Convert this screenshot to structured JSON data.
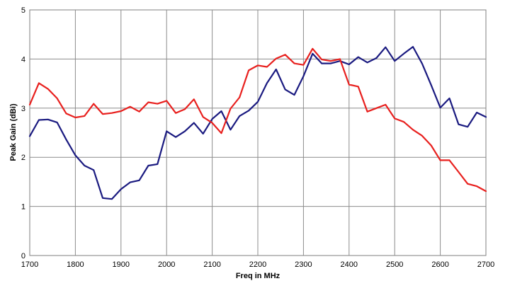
{
  "chart_data": {
    "type": "line",
    "title": "",
    "xlabel": "Freq in MHz",
    "ylabel": "Peak Gain (dBi)",
    "xlim": [
      1700,
      2700
    ],
    "ylim": [
      0,
      5
    ],
    "x_ticks": [
      "1700",
      "1800",
      "1900",
      "2000",
      "2100",
      "2200",
      "2300",
      "2400",
      "2500",
      "2600",
      "2700"
    ],
    "y_ticks": [
      "0",
      "1",
      "2",
      "3",
      "4",
      "5"
    ],
    "grid": true,
    "legend": "none",
    "x": [
      1700,
      1720,
      1740,
      1760,
      1780,
      1800,
      1820,
      1840,
      1860,
      1880,
      1900,
      1920,
      1940,
      1960,
      1980,
      2000,
      2020,
      2040,
      2060,
      2080,
      2100,
      2120,
      2140,
      2160,
      2180,
      2200,
      2220,
      2240,
      2260,
      2280,
      2300,
      2320,
      2340,
      2360,
      2380,
      2400,
      2420,
      2440,
      2460,
      2480,
      2500,
      2520,
      2540,
      2560,
      2580,
      2600,
      2620,
      2640,
      2660,
      2680,
      2700
    ],
    "series": [
      {
        "color": "#1a1a80",
        "values": [
          2.43,
          2.76,
          2.77,
          2.71,
          2.36,
          2.04,
          1.83,
          1.74,
          1.17,
          1.15,
          1.35,
          1.49,
          1.53,
          1.83,
          1.86,
          2.53,
          2.41,
          2.53,
          2.7,
          2.48,
          2.78,
          2.94,
          2.56,
          2.84,
          2.95,
          3.13,
          3.51,
          3.79,
          3.38,
          3.27,
          3.65,
          4.11,
          3.91,
          3.91,
          3.96,
          3.89,
          4.04,
          3.93,
          4.02,
          4.24,
          3.96,
          4.11,
          4.25,
          3.91,
          3.47,
          3.01,
          3.2,
          2.67,
          2.62,
          2.91,
          2.82
        ]
      },
      {
        "color": "#e8201e",
        "values": [
          3.07,
          3.51,
          3.39,
          3.2,
          2.89,
          2.81,
          2.84,
          3.09,
          2.88,
          2.9,
          2.94,
          3.03,
          2.93,
          3.12,
          3.09,
          3.15,
          2.9,
          2.98,
          3.18,
          2.82,
          2.7,
          2.49,
          2.99,
          3.22,
          3.77,
          3.87,
          3.84,
          4.01,
          4.09,
          3.91,
          3.88,
          4.21,
          3.99,
          3.96,
          4.0,
          3.48,
          3.44,
          2.93,
          3.0,
          3.07,
          2.79,
          2.72,
          2.56,
          2.44,
          2.24,
          1.94,
          1.94,
          1.7,
          1.46,
          1.41,
          1.31
        ]
      }
    ]
  }
}
